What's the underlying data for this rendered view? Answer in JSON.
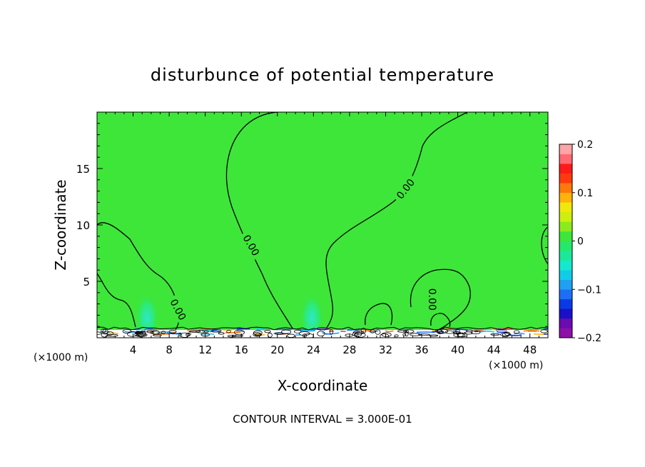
{
  "chart_data": {
    "type": "heatmap",
    "title": "disturbunce of potential temperature",
    "xlabel": "X-coordinate",
    "ylabel": "Z-coordinate",
    "x_unit": "(×1000 m)",
    "y_unit": "(×1000 m)",
    "xlim": [
      0,
      50
    ],
    "ylim": [
      0,
      20
    ],
    "x_ticks": [
      4,
      8,
      12,
      16,
      20,
      24,
      28,
      32,
      36,
      40,
      44,
      48
    ],
    "y_ticks": [
      5,
      10,
      15
    ],
    "footer": "CONTOUR INTERVAL = 3.000E-01",
    "colorbar": {
      "range": [
        -0.2,
        0.2
      ],
      "tick_values": [
        0.2,
        0.1,
        0,
        -0.1,
        -0.2
      ],
      "tick_labels": [
        "0.2",
        "0.1",
        "0",
        "−0.1",
        "−0.2"
      ],
      "colors": [
        "#8e10a8",
        "#6a0cb0",
        "#1a10c8",
        "#0a3ae6",
        "#1d6ef5",
        "#20a0f2",
        "#10cce6",
        "#14e8cf",
        "#1be89a",
        "#25e86a",
        "#3ee63a",
        "#8aea1e",
        "#cdee0e",
        "#f0e80a",
        "#ffb20a",
        "#ff780a",
        "#ff3a0e",
        "#ff1a1a",
        "#ff6a72",
        "#ffa4a8"
      ]
    },
    "background_value": 0,
    "contour_labels": [
      {
        "text": "0.00",
        "x": 9.0,
        "z": 2.5,
        "angle": 62
      },
      {
        "text": "0.00",
        "x": 17.1,
        "z": 8.2,
        "angle": 60
      },
      {
        "text": "0.00",
        "x": 34.2,
        "z": 13.2,
        "angle": -52
      },
      {
        "text": "0.00",
        "x": 37.2,
        "z": 3.4,
        "angle": 90
      }
    ],
    "anomalies": [
      {
        "label": "cool plume",
        "x": 5.5,
        "z": 2.5,
        "value": -0.06
      },
      {
        "label": "cool plume",
        "x": 23.6,
        "z": 2.5,
        "value": -0.06
      }
    ]
  }
}
